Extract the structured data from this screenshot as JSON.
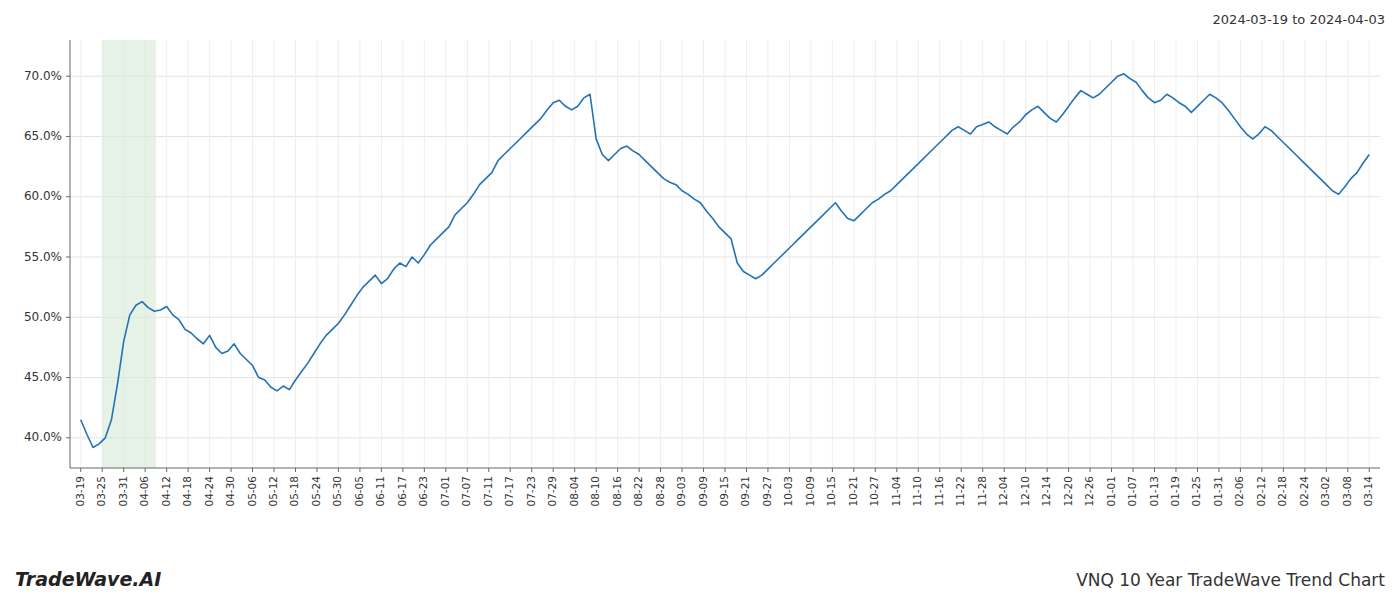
{
  "chart_data": {
    "type": "line",
    "title": "VNQ 10 Year TradeWave Trend Chart",
    "subtitle": "2024-03-19 to 2024-04-03",
    "annotations": [
      "TradeWave.AI"
    ],
    "color": "#2272b5",
    "grid": true,
    "highlight": {
      "x": [
        1,
        3.5
      ],
      "color": "#d6ead6"
    },
    "xlim": [
      -0.5,
      60.5
    ],
    "xticks": [
      {
        "value": 0,
        "label": "03-19"
      },
      {
        "value": 1,
        "label": "03-25"
      },
      {
        "value": 2,
        "label": "03-31"
      },
      {
        "value": 3,
        "label": "04-06"
      },
      {
        "value": 4,
        "label": "04-12"
      },
      {
        "value": 5,
        "label": "04-18"
      },
      {
        "value": 6,
        "label": "04-24"
      },
      {
        "value": 7,
        "label": "04-30"
      },
      {
        "value": 8,
        "label": "05-06"
      },
      {
        "value": 9,
        "label": "05-12"
      },
      {
        "value": 10,
        "label": "05-18"
      },
      {
        "value": 11,
        "label": "05-24"
      },
      {
        "value": 12,
        "label": "05-30"
      },
      {
        "value": 13,
        "label": "06-05"
      },
      {
        "value": 14,
        "label": "06-11"
      },
      {
        "value": 15,
        "label": "06-17"
      },
      {
        "value": 16,
        "label": "06-23"
      },
      {
        "value": 17,
        "label": "07-01"
      },
      {
        "value": 18,
        "label": "07-07"
      },
      {
        "value": 19,
        "label": "07-11"
      },
      {
        "value": 20,
        "label": "07-17"
      },
      {
        "value": 21,
        "label": "07-23"
      },
      {
        "value": 22,
        "label": "07-29"
      },
      {
        "value": 23,
        "label": "08-04"
      },
      {
        "value": 24,
        "label": "08-10"
      },
      {
        "value": 25,
        "label": "08-16"
      },
      {
        "value": 26,
        "label": "08-22"
      },
      {
        "value": 27,
        "label": "08-28"
      },
      {
        "value": 28,
        "label": "09-03"
      },
      {
        "value": 29,
        "label": "09-09"
      },
      {
        "value": 30,
        "label": "09-15"
      },
      {
        "value": 31,
        "label": "09-21"
      },
      {
        "value": 32,
        "label": "09-27"
      },
      {
        "value": 33,
        "label": "10-03"
      },
      {
        "value": 34,
        "label": "10-09"
      },
      {
        "value": 35,
        "label": "10-15"
      },
      {
        "value": 36,
        "label": "10-21"
      },
      {
        "value": 37,
        "label": "10-27"
      },
      {
        "value": 38,
        "label": "11-04"
      },
      {
        "value": 39,
        "label": "11-10"
      },
      {
        "value": 40,
        "label": "11-16"
      },
      {
        "value": 41,
        "label": "11-22"
      },
      {
        "value": 42,
        "label": "11-28"
      },
      {
        "value": 43,
        "label": "12-04"
      },
      {
        "value": 44,
        "label": "12-10"
      },
      {
        "value": 45,
        "label": "12-14"
      },
      {
        "value": 46,
        "label": "12-20"
      },
      {
        "value": 47,
        "label": "12-26"
      },
      {
        "value": 48,
        "label": "01-01"
      },
      {
        "value": 49,
        "label": "01-07"
      },
      {
        "value": 50,
        "label": "01-13"
      },
      {
        "value": 51,
        "label": "01-19"
      },
      {
        "value": 52,
        "label": "01-25"
      },
      {
        "value": 53,
        "label": "01-31"
      },
      {
        "value": 54,
        "label": "02-06"
      },
      {
        "value": 55,
        "label": "02-12"
      },
      {
        "value": 56,
        "label": "02-18"
      },
      {
        "value": 57,
        "label": "02-24"
      },
      {
        "value": 58,
        "label": "03-02"
      },
      {
        "value": 59,
        "label": "03-08"
      },
      {
        "value": 60,
        "label": "03-14"
      }
    ],
    "ylim": [
      37.5,
      73.0
    ],
    "yticks": [
      {
        "value": 40.0,
        "label": "40.0%"
      },
      {
        "value": 45.0,
        "label": "45.0%"
      },
      {
        "value": 50.0,
        "label": "50.0%"
      },
      {
        "value": 55.0,
        "label": "55.0%"
      },
      {
        "value": 60.0,
        "label": "60.0%"
      },
      {
        "value": 65.0,
        "label": "65.0%"
      },
      {
        "value": 70.0,
        "label": "70.0%"
      }
    ],
    "x": [
      0,
      0.285714285714286,
      0.571428571428571,
      0.857142857142857,
      1.142857142857143,
      1.428571428571429,
      1.714285714285714,
      2,
      2.285714285714286,
      2.571428571428571,
      2.857142857142857,
      3.142857142857143,
      3.428571428571429,
      3.714285714285714,
      4,
      4.285714285714286,
      4.571428571428571,
      4.857142857142857,
      5.142857142857143,
      5.428571428571429,
      5.714285714285714,
      6,
      6.285714285714286,
      6.571428571428571,
      6.857142857142857,
      7.142857142857143,
      7.428571428571429,
      7.714285714285714,
      8,
      8.285714285714286,
      8.571428571428571,
      8.857142857142858,
      9.142857142857142,
      9.428571428571429,
      9.714285714285714,
      10,
      10.285714285714286,
      10.571428571428571,
      10.857142857142858,
      11.142857142857142,
      11.428571428571429,
      11.714285714285714,
      12,
      12.285714285714286,
      12.571428571428571,
      12.857142857142858,
      13.142857142857142,
      13.428571428571429,
      13.714285714285714,
      14,
      14.285714285714286,
      14.571428571428571,
      14.857142857142858,
      15.142857142857142,
      15.428571428571429,
      15.714285714285714,
      16,
      16.285714285714285,
      16.57142857142857,
      16.857142857142858,
      17.142857142857142,
      17.42857142857143,
      17.714285714285715,
      18,
      18.285714285714285,
      18.57142857142857,
      18.857142857142858,
      19.142857142857142,
      19.42857142857143,
      19.714285714285715,
      20,
      20.285714285714285,
      20.57142857142857,
      20.857142857142858,
      21.142857142857142,
      21.42857142857143,
      21.714285714285715,
      22,
      22.285714285714285,
      22.57142857142857,
      22.857142857142858,
      23.142857142857142,
      23.42857142857143,
      23.714285714285715,
      24,
      24.285714285714285,
      24.57142857142857,
      24.857142857142858,
      25.142857142857142,
      25.42857142857143,
      25.714285714285715,
      26,
      26.285714285714285,
      26.57142857142857,
      26.857142857142858,
      27.142857142857142,
      27.42857142857143,
      27.714285714285715,
      28,
      28.285714285714285,
      28.57142857142857,
      28.857142857142858,
      29.142857142857142,
      29.42857142857143,
      29.714285714285715,
      30,
      30.285714285714285,
      30.57142857142857,
      30.857142857142858,
      31.142857142857142,
      31.42857142857143,
      31.714285714285715,
      32,
      32.285714285714285,
      32.57142857142857,
      32.857142857142854,
      33.142857142857146,
      33.42857142857143,
      33.714285714285715,
      34,
      34.285714285714285,
      34.57142857142857,
      34.857142857142854,
      35.142857142857146,
      35.42857142857143,
      35.714285714285715,
      36,
      36.285714285714285,
      36.57142857142857,
      36.857142857142854,
      37.142857142857146,
      37.42857142857143,
      37.714285714285715,
      38,
      38.285714285714285,
      38.57142857142857,
      38.857142857142854,
      39.142857142857146,
      39.42857142857143,
      39.714285714285715,
      40,
      40.285714285714285,
      40.57142857142857,
      40.857142857142854,
      41.142857142857146,
      41.42857142857143,
      41.714285714285715,
      42,
      42.285714285714285,
      42.57142857142857,
      42.857142857142854,
      43.142857142857146,
      43.42857142857143,
      43.714285714285715,
      44,
      44.285714285714285,
      44.57142857142857,
      44.857142857142854,
      45.142857142857146,
      45.42857142857143,
      45.714285714285715,
      46,
      46.285714285714285,
      46.57142857142857,
      46.857142857142854,
      47.142857142857146,
      47.42857142857143,
      47.714285714285715,
      48,
      48.285714285714285,
      48.57142857142857,
      48.857142857142854,
      49.142857142857146,
      49.42857142857143,
      49.714285714285715,
      50,
      50.285714285714285,
      50.57142857142857,
      50.857142857142854,
      51.142857142857146,
      51.42857142857143,
      51.714285714285715,
      52,
      52.285714285714285,
      52.57142857142857,
      52.857142857142854,
      53.142857142857146,
      53.42857142857143,
      53.714285714285715,
      54,
      54.285714285714285,
      54.57142857142857,
      54.857142857142854,
      55.142857142857146,
      55.42857142857143,
      55.714285714285715,
      56,
      56.285714285714285,
      56.57142857142857,
      56.857142857142854,
      57.142857142857146,
      57.42857142857143,
      57.714285714285715,
      58,
      58.285714285714285,
      58.57142857142857,
      58.857142857142854,
      59.142857142857146,
      59.42857142857143,
      59.714285714285715,
      60
    ],
    "values": [
      41.5,
      40.3,
      39.2,
      39.5,
      40.0,
      41.5,
      44.5,
      48.0,
      50.2,
      51.0,
      51.3,
      50.8,
      50.5,
      50.6,
      50.9,
      50.2,
      49.8,
      49.0,
      48.7,
      48.2,
      47.8,
      48.5,
      47.5,
      47.0,
      47.2,
      47.8,
      47.0,
      46.5,
      46.0,
      45.0,
      44.8,
      44.2,
      43.9,
      44.3,
      44.0,
      44.8,
      45.5,
      46.2,
      47.0,
      47.8,
      48.5,
      49.0,
      49.5,
      50.2,
      51.0,
      51.8,
      52.5,
      53.0,
      53.5,
      52.8,
      53.2,
      54.0,
      54.5,
      54.2,
      55.0,
      54.5,
      55.2,
      56.0,
      56.5,
      57.0,
      57.5,
      58.5,
      59.0,
      59.5,
      60.2,
      61.0,
      61.5,
      62.0,
      63.0,
      63.5,
      64.0,
      64.5,
      65.0,
      65.5,
      66.0,
      66.5,
      67.2,
      67.8,
      68.0,
      67.5,
      67.2,
      67.5,
      68.2,
      68.5,
      64.8,
      63.5,
      63.0,
      63.5,
      64.0,
      64.2,
      63.8,
      63.5,
      63.0,
      62.5,
      62.0,
      61.5,
      61.2,
      61.0,
      60.5,
      60.2,
      59.8,
      59.5,
      58.8,
      58.2,
      57.5,
      57.0,
      56.5,
      54.5,
      53.8,
      53.5,
      53.2,
      53.5,
      54.0,
      54.5,
      55.0,
      55.5,
      56.0,
      56.5,
      57.0,
      57.5,
      58.0,
      58.5,
      59.0,
      59.5,
      58.8,
      58.2,
      58.0,
      58.5,
      59.0,
      59.5,
      59.8,
      60.2,
      60.5,
      61.0,
      61.5,
      62.0,
      62.5,
      63.0,
      63.5,
      64.0,
      64.5,
      65.0,
      65.5,
      65.8,
      65.5,
      65.2,
      65.8,
      66.0,
      66.2,
      65.8,
      65.5,
      65.2,
      65.8,
      66.2,
      66.8,
      67.2,
      67.5,
      67.0,
      66.5,
      66.2,
      66.8,
      67.5,
      68.2,
      68.8,
      68.5,
      68.2,
      68.5,
      69.0,
      69.5,
      70.0,
      70.2,
      69.8,
      69.5,
      68.8,
      68.2,
      67.8,
      68.0,
      68.5,
      68.2,
      67.8,
      67.5,
      67.0,
      67.5,
      68.0,
      68.5,
      68.2,
      67.8,
      67.2,
      66.5,
      65.8,
      65.2,
      64.8,
      65.2,
      65.8,
      65.5,
      65.0,
      64.5,
      64.0,
      63.5,
      63.0,
      62.5,
      62.0,
      61.5,
      61.0,
      60.5,
      60.2,
      60.8,
      61.5,
      62.0,
      62.8,
      63.5
    ]
  }
}
